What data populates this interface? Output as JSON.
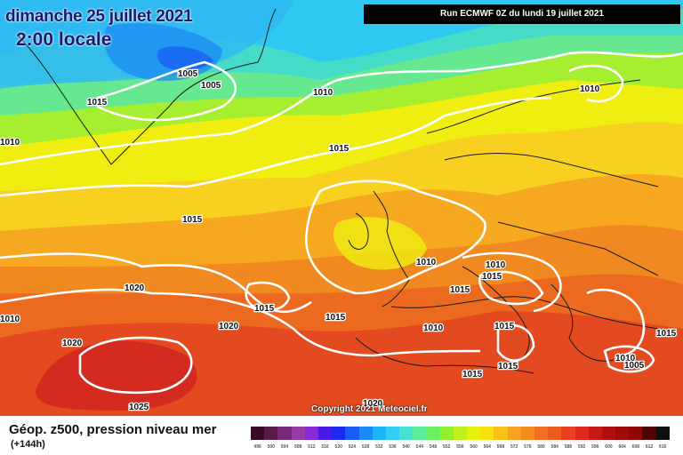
{
  "header": {
    "date": "dimanche 25 juillet 2021",
    "time": "2:00 locale",
    "run": "Run ECMWF 0Z du lundi 19 juillet 2021"
  },
  "map": {
    "isobar_color": "#ffffff",
    "pressure_labels": [
      "1005",
      "1005",
      "1015",
      "1010",
      "1010",
      "1010",
      "1015",
      "1015",
      "1010",
      "1010",
      "1015",
      "1020",
      "1015",
      "1015",
      "1020",
      "1010",
      "1010",
      "1015",
      "1015",
      "1020",
      "1025",
      "1020",
      "1015",
      "1015",
      "1010",
      "1005",
      "1015"
    ],
    "copyright": "Copyright 2021 Meteociel.fr"
  },
  "legend": {
    "title": "Géop. z500, pression niveau mer",
    "lead_time": "(+144h)",
    "scale_values": [
      "496",
      "500",
      "504",
      "508",
      "512",
      "516",
      "520",
      "524",
      "528",
      "532",
      "536",
      "540",
      "544",
      "548",
      "552",
      "556",
      "560",
      "564",
      "568",
      "572",
      "576",
      "580",
      "584",
      "588",
      "592",
      "596",
      "600",
      "604",
      "608",
      "612",
      "616"
    ],
    "scale_colors": [
      "#3a0a2a",
      "#5a1a4a",
      "#7a2a7a",
      "#9a3aa6",
      "#8a2ad6",
      "#4a1ae6",
      "#1a2af0",
      "#1a5af5",
      "#1a8af8",
      "#1ab4fa",
      "#33ccf5",
      "#4ae0d0",
      "#5aee9a",
      "#6af060",
      "#90f030",
      "#c0f01a",
      "#e8f010",
      "#f8e010",
      "#fac018",
      "#f8a020",
      "#f58a20",
      "#f07020",
      "#ec5a20",
      "#e84020",
      "#e02a20",
      "#c81818",
      "#b01010",
      "#a00a0a",
      "#900606",
      "#500404",
      "#101010"
    ]
  }
}
